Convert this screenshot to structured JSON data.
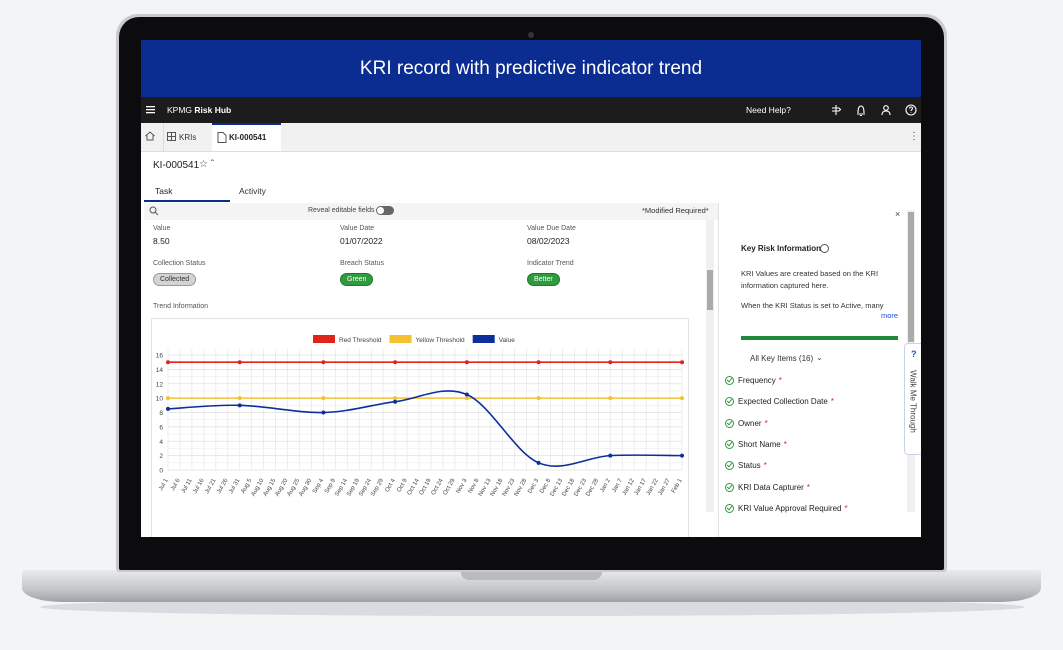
{
  "banner": {
    "title": "KRI record with predictive indicator trend"
  },
  "topbar": {
    "brand": "KPMG",
    "brand_bold": "Risk Hub",
    "help": "Need Help?"
  },
  "tabs": [
    "KRIs",
    "KI-000541"
  ],
  "record": {
    "id": "KI-000541",
    "tabs": [
      "Task",
      "Activity"
    ],
    "toggle_label": "Reveal editable fields",
    "modified": "*Modified",
    "required": "Required*"
  },
  "fields": [
    {
      "label": "Value",
      "value": "8.50"
    },
    {
      "label": "Value Date",
      "value": "01/07/2022"
    },
    {
      "label": "Value Due Date",
      "value": "08/02/2023"
    },
    {
      "label": "Collection Status",
      "value": "Collected"
    },
    {
      "label": "Breach Status",
      "value": "Green"
    },
    {
      "label": "Indicator Trend",
      "value": "Better"
    }
  ],
  "section_title": "Trend Information",
  "chart_data": {
    "type": "line",
    "xticks": [
      "Jul 1",
      "Jul 6",
      "Jul 11",
      "Jul 16",
      "Jul 21",
      "Jul 26",
      "Jul 31",
      "Aug 5",
      "Aug 10",
      "Aug 15",
      "Aug 20",
      "Aug 25",
      "Aug 30",
      "Sep 4",
      "Sep 9",
      "Sep 14",
      "Sep 19",
      "Sep 24",
      "Sep 29",
      "Oct 4",
      "Oct 9",
      "Oct 14",
      "Oct 19",
      "Oct 24",
      "Oct 29",
      "Nov 3",
      "Nov 8",
      "Nov 13",
      "Nov 18",
      "Nov 23",
      "Nov 28",
      "Dec 3",
      "Dec 8",
      "Dec 13",
      "Dec 18",
      "Dec 23",
      "Dec 28",
      "Jan 2",
      "Jan 7",
      "Jan 12",
      "Jan 17",
      "Jan 22",
      "Jan 27",
      "Feb 1"
    ],
    "x": [
      "Jul 1",
      "Jul 31",
      "Sep 4",
      "Oct 4",
      "Nov 3",
      "Dec 3",
      "Jan 2",
      "Feb 1"
    ],
    "series": [
      {
        "name": "Red Threshold",
        "color": "#e0251b",
        "values": [
          15,
          15,
          15,
          15,
          15,
          15,
          15,
          15
        ]
      },
      {
        "name": "Yellow Threshold",
        "color": "#f2c230",
        "values": [
          10,
          10,
          10,
          10,
          10,
          10,
          10,
          10
        ]
      },
      {
        "name": "Value",
        "color": "#0d2f9a",
        "values": [
          8.5,
          9,
          8,
          9.5,
          10.5,
          1,
          2,
          2
        ]
      }
    ],
    "ylim": [
      0,
      16
    ],
    "yticks": [
      0,
      2,
      4,
      6,
      8,
      10,
      12,
      14,
      16
    ],
    "grid": true
  },
  "side_panel": {
    "title": "Key Risk Information",
    "text": [
      "KRI Values are created based on the KRI information captured here.",
      "When the KRI Status is set to Active, many"
    ],
    "more": "more",
    "list_title": "All Key Items (16)",
    "items": [
      {
        "label": "Frequency",
        "mark": "*"
      },
      {
        "label": "Expected Collection Date",
        "mark": "*"
      },
      {
        "label": "Owner",
        "mark": "*"
      },
      {
        "label": "Short Name",
        "mark": "*"
      },
      {
        "label": "Status",
        "mark": "*"
      },
      {
        "label": "KRI Data Capturer",
        "mark": "*"
      },
      {
        "label": "KRI Value Approval Required",
        "mark": "*"
      }
    ]
  },
  "walkme": {
    "icon": "?",
    "label": "Walk Me Through"
  }
}
